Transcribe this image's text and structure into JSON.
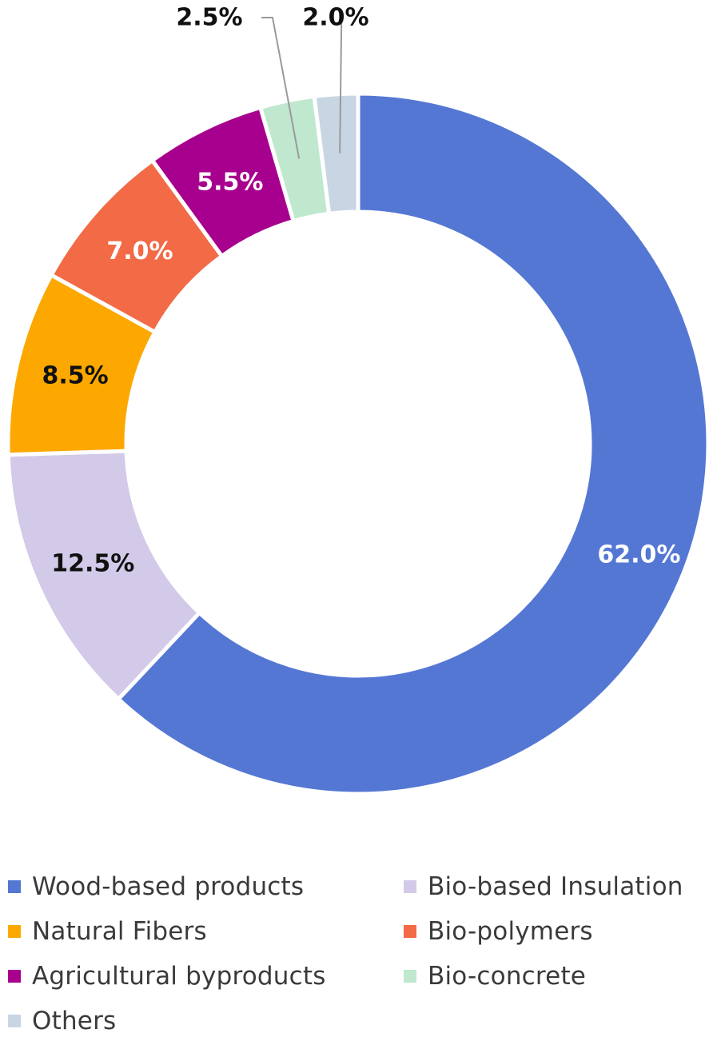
{
  "chart_data": {
    "type": "pie",
    "donut": true,
    "series": [
      {
        "name": "Wood-based products",
        "value": 62.0,
        "label": "62.0%",
        "color": "#5577d4"
      },
      {
        "name": "Bio-based Insulation",
        "value": 12.5,
        "label": "12.5%",
        "color": "#d3c9e8"
      },
      {
        "name": "Natural Fibers",
        "value": 8.5,
        "label": "8.5%",
        "color": "#fca800"
      },
      {
        "name": "Bio-polymers",
        "value": 7.0,
        "label": "7.0%",
        "color": "#f26a46"
      },
      {
        "name": "Agricultural byproducts",
        "value": 5.5,
        "label": "5.5%",
        "color": "#a8008e"
      },
      {
        "name": "Bio-concrete",
        "value": 2.5,
        "label": "2.5%",
        "color": "#bfe8cf"
      },
      {
        "name": "Others",
        "value": 2.0,
        "label": "2.0%",
        "color": "#c8d6e4"
      }
    ],
    "label_colors": {
      "62.0%": "#ffffff",
      "12.5%": "#111111",
      "8.5%": "#111111",
      "7.0%": "#ffffff",
      "5.5%": "#ffffff",
      "2.5%": "#111111",
      "2.0%": "#111111"
    },
    "legend_position": "bottom"
  }
}
